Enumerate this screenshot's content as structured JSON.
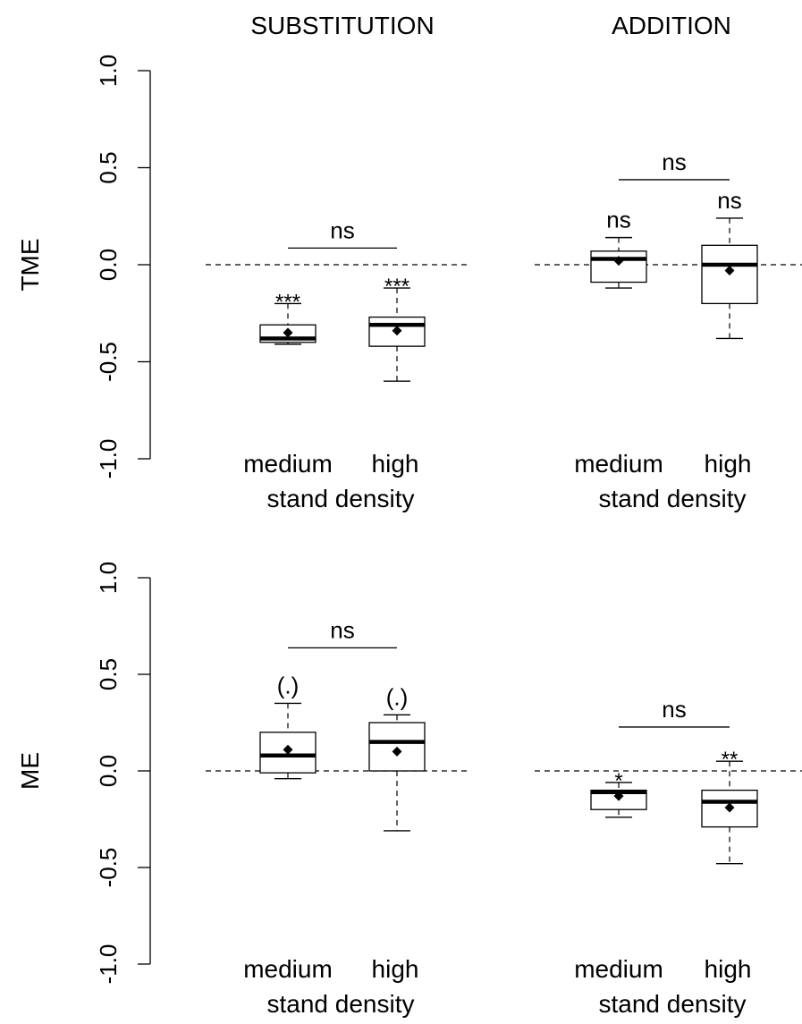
{
  "chart_data": {
    "type": "box",
    "column_titles": [
      "SUBSTITUTION",
      "ADDITION"
    ],
    "row_labels": [
      "TME",
      "ME"
    ],
    "y_ticks": [
      "-1.0",
      "-0.5",
      "0.0",
      "0.5",
      "1.0"
    ],
    "ylim": [
      -1.0,
      1.0
    ],
    "reference_line": 0.0,
    "x_ticks": [
      "medium",
      "high"
    ],
    "x_label": "stand density",
    "panels": [
      {
        "row": "TME",
        "column": "SUBSTITUTION",
        "comparison": "ns",
        "boxes": [
          {
            "x": "medium",
            "whisker_low": -0.41,
            "q1": -0.4,
            "median": -0.38,
            "q3": -0.31,
            "whisker_high": -0.2,
            "mean": -0.35,
            "signif": "***"
          },
          {
            "x": "high",
            "whisker_low": -0.6,
            "q1": -0.42,
            "median": -0.31,
            "q3": -0.27,
            "whisker_high": -0.12,
            "mean": -0.34,
            "signif": "***"
          }
        ]
      },
      {
        "row": "TME",
        "column": "ADDITION",
        "comparison": "ns",
        "boxes": [
          {
            "x": "medium",
            "whisker_low": -0.12,
            "q1": -0.09,
            "median": 0.03,
            "q3": 0.07,
            "whisker_high": 0.14,
            "mean": 0.02,
            "signif": "ns"
          },
          {
            "x": "high",
            "whisker_low": -0.38,
            "q1": -0.2,
            "median": 0.0,
            "q3": 0.1,
            "whisker_high": 0.24,
            "mean": -0.03,
            "signif": "ns"
          }
        ]
      },
      {
        "row": "ME",
        "column": "SUBSTITUTION",
        "comparison": "ns",
        "boxes": [
          {
            "x": "medium",
            "whisker_low": -0.04,
            "q1": -0.01,
            "median": 0.08,
            "q3": 0.2,
            "whisker_high": 0.35,
            "mean": 0.11,
            "signif": "(.)"
          },
          {
            "x": "high",
            "whisker_low": -0.31,
            "q1": 0.0,
            "median": 0.15,
            "q3": 0.25,
            "whisker_high": 0.29,
            "mean": 0.1,
            "signif": "(.)"
          }
        ]
      },
      {
        "row": "ME",
        "column": "ADDITION",
        "comparison": "ns",
        "boxes": [
          {
            "x": "medium",
            "whisker_low": -0.24,
            "q1": -0.2,
            "median": -0.11,
            "q3": -0.1,
            "whisker_high": -0.06,
            "mean": -0.13,
            "signif": "*"
          },
          {
            "x": "high",
            "whisker_low": -0.48,
            "q1": -0.29,
            "median": -0.16,
            "q3": -0.1,
            "whisker_high": 0.05,
            "mean": -0.19,
            "signif": "**"
          }
        ]
      }
    ]
  }
}
